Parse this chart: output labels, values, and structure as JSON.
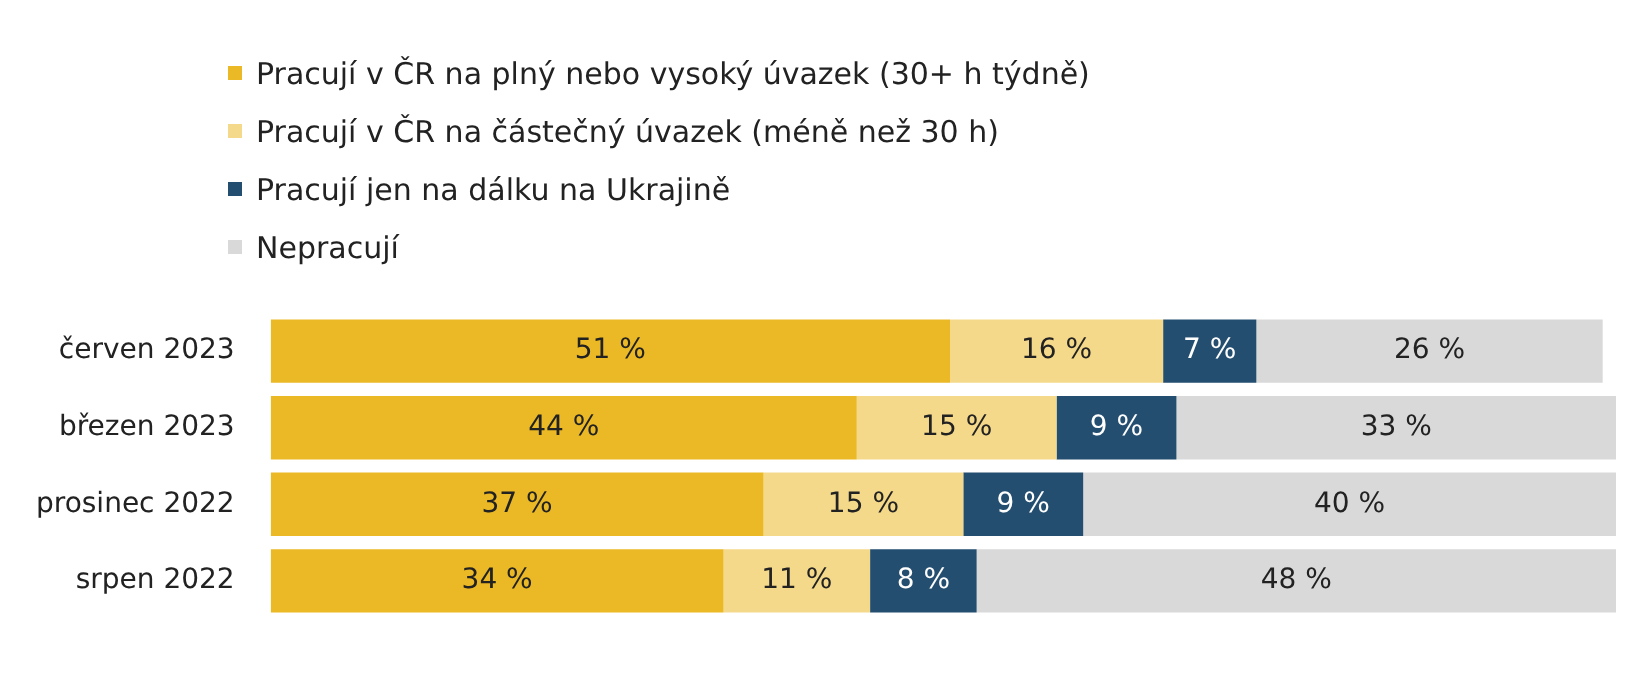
{
  "chart_data": {
    "type": "bar",
    "orientation": "horizontal",
    "stacked": true,
    "legend": "top left",
    "tick_labels": "y",
    "categories": [
      "červen 2023",
      "březen 2023",
      "prosinec 2022",
      "srpen 2022"
    ],
    "series": [
      {
        "name": "Pracují v ČR na plný nebo vysoký úvazek (30+ h týdně)",
        "color": "#ebb925",
        "values": [
          51,
          44,
          37,
          34
        ],
        "value_labels": [
          "51 %",
          "44 %",
          "37 %",
          "34 %"
        ]
      },
      {
        "name": "Pracují v ČR na částečný úvazek (méně než 30 h)",
        "color": "#f5d98a",
        "values": [
          16,
          15,
          15,
          11
        ],
        "value_labels": [
          "16 %",
          "15 %",
          "15 %",
          "11 %"
        ]
      },
      {
        "name": "Pracují jen na dálku na Ukrajině",
        "color": "#234e70",
        "values": [
          7,
          9,
          9,
          8
        ],
        "value_labels": [
          "7 %",
          "9 %",
          "9 %",
          "8 %"
        ]
      },
      {
        "name": "Nepracují",
        "color": "#d9d9d9",
        "values": [
          26,
          33,
          40,
          48
        ],
        "value_labels": [
          "26 %",
          "33 %",
          "40 %",
          "48 %"
        ]
      }
    ]
  }
}
